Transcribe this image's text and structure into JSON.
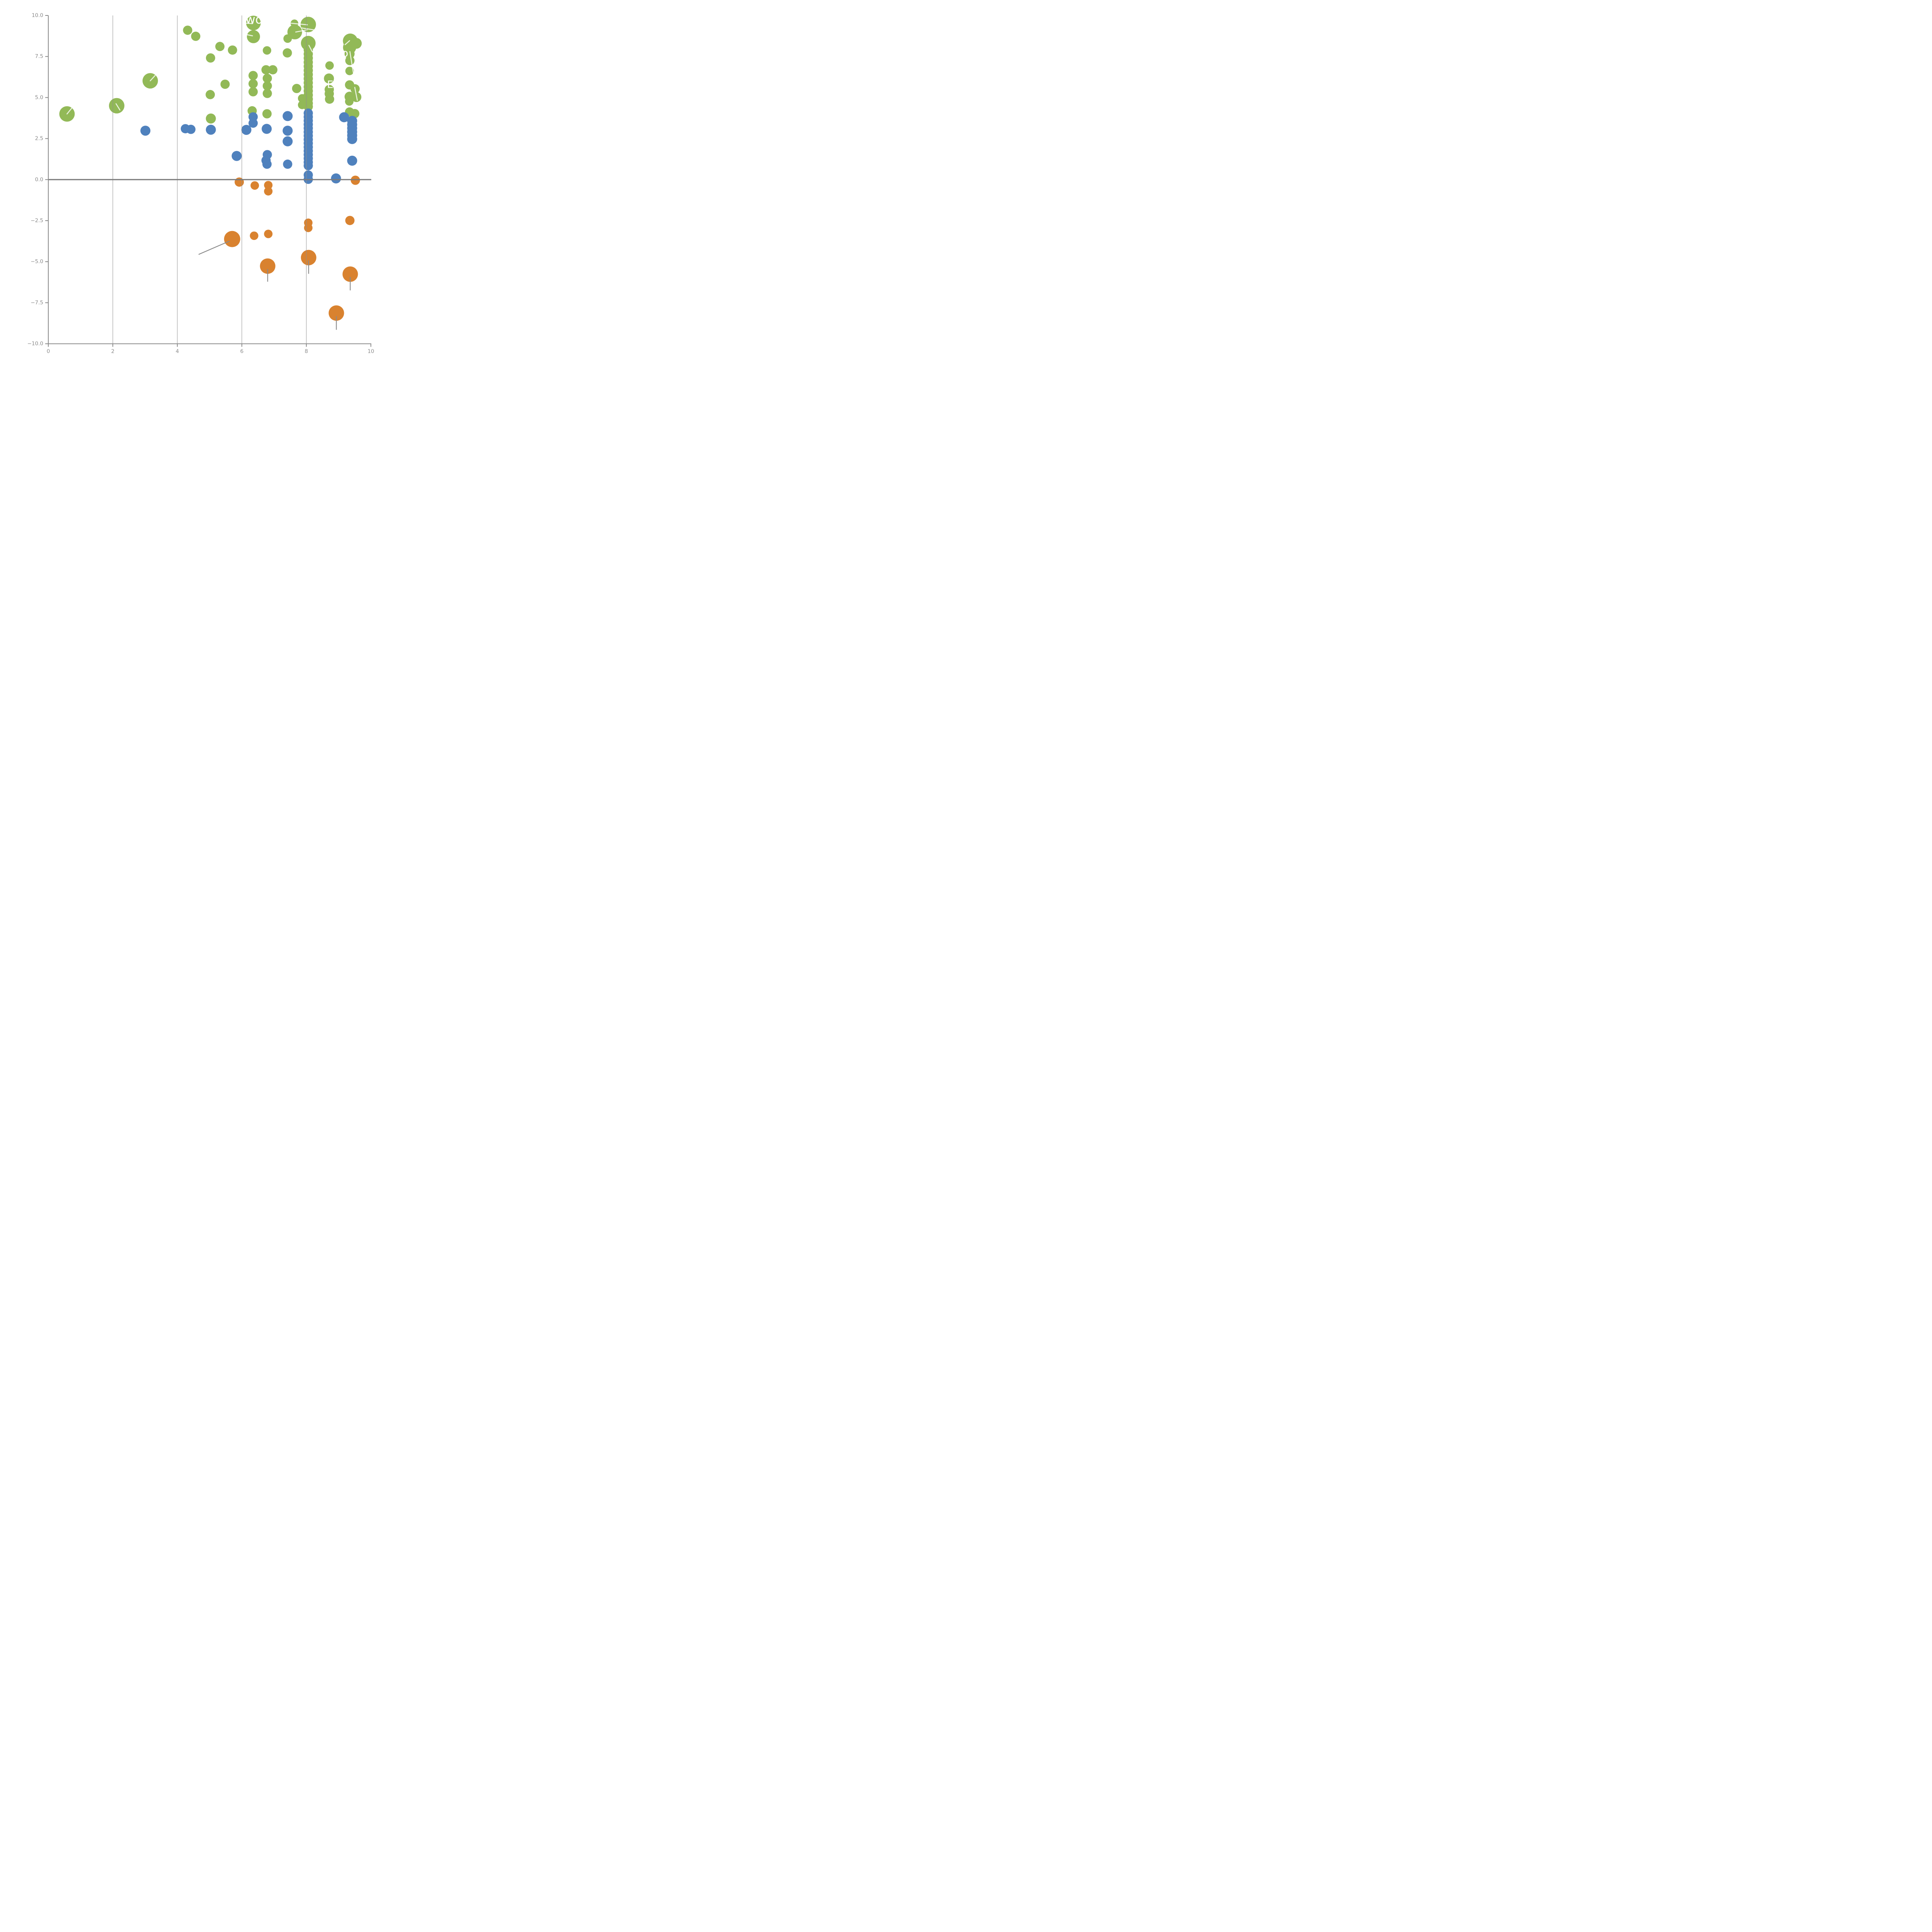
{
  "chart_data": {
    "type": "scatter",
    "title": "",
    "xlabel": "",
    "ylabel": "",
    "xlim": [
      0,
      10
    ],
    "ylim": [
      -10,
      10
    ],
    "x_ticks": [
      0,
      2,
      4,
      6,
      8,
      10
    ],
    "x_tick_labels": [
      "0",
      "2",
      "4",
      "6",
      "8",
      "10"
    ],
    "y_ticks": [
      10.0,
      7.5,
      5.0,
      2.5,
      0.0,
      -2.5,
      -5.0,
      -7.5,
      -10.0
    ],
    "y_tick_labels": [
      "10.0",
      "7.5",
      "5.0",
      "2.5",
      "0.0",
      "−2.5",
      "−5.0",
      "−7.5",
      "−10.0"
    ],
    "grid_x": [
      2,
      4,
      6,
      8
    ],
    "zero_line_y": 0,
    "legend": "none",
    "colors": {
      "green": "#92b957",
      "blue": "#4f81bd",
      "orange": "#d9822f",
      "axis": "#8a8a8a",
      "grid": "#8f8f8f",
      "zero_line": "#7b7b7b",
      "tick_label": "#8c8c8c",
      "gray_leader": "#8a8a8a",
      "white_annotation": "#ffffff"
    },
    "series": [
      {
        "name": "green-group",
        "color_key": "green",
        "points": [
          [
            0.58,
            4.0,
            20
          ],
          [
            2.12,
            4.5,
            20
          ],
          [
            3.16,
            6.02,
            20
          ],
          [
            4.32,
            9.1,
            12
          ],
          [
            4.57,
            8.73,
            12
          ],
          [
            5.32,
            8.11,
            12
          ],
          [
            5.71,
            7.89,
            12
          ],
          [
            5.03,
            7.41,
            12
          ],
          [
            5.48,
            5.81,
            12
          ],
          [
            5.02,
            5.18,
            12
          ],
          [
            5.04,
            3.72,
            13
          ],
          [
            6.36,
            9.54,
            19
          ],
          [
            6.36,
            8.71,
            17
          ],
          [
            6.35,
            6.34,
            12
          ],
          [
            6.35,
            5.84,
            12
          ],
          [
            6.35,
            5.35,
            12
          ],
          [
            6.75,
            6.69,
            12
          ],
          [
            6.96,
            6.69,
            12
          ],
          [
            6.78,
            7.87,
            11
          ],
          [
            6.79,
            6.17,
            12
          ],
          [
            6.79,
            5.71,
            12
          ],
          [
            6.79,
            5.25,
            12
          ],
          [
            6.32,
            4.19,
            12
          ],
          [
            6.78,
            4.01,
            12
          ],
          [
            7.41,
            7.72,
            12
          ],
          [
            7.63,
            9.52,
            10
          ],
          [
            7.64,
            8.99,
            19
          ],
          [
            7.42,
            8.59,
            11
          ],
          [
            7.7,
            5.55,
            12
          ],
          [
            8.06,
            9.45,
            20
          ],
          [
            8.06,
            8.31,
            19
          ],
          [
            8.06,
            7.9,
            12
          ],
          [
            8.06,
            7.65,
            12
          ],
          [
            8.06,
            7.4,
            12
          ],
          [
            8.06,
            7.15,
            12
          ],
          [
            8.06,
            6.9,
            12
          ],
          [
            8.06,
            6.65,
            12
          ],
          [
            8.06,
            6.4,
            12
          ],
          [
            8.06,
            6.15,
            12
          ],
          [
            8.06,
            5.9,
            12
          ],
          [
            8.06,
            5.65,
            12
          ],
          [
            8.06,
            5.4,
            12
          ],
          [
            8.06,
            5.15,
            12
          ],
          [
            8.06,
            4.9,
            12
          ],
          [
            8.06,
            4.65,
            12
          ],
          [
            8.06,
            4.45,
            12
          ],
          [
            7.87,
            4.95,
            11
          ],
          [
            7.87,
            4.55,
            11
          ],
          [
            8.7,
            6.16,
            13
          ],
          [
            8.71,
            5.49,
            12
          ],
          [
            8.71,
            5.23,
            12
          ],
          [
            8.72,
            4.9,
            12
          ],
          [
            8.72,
            6.95,
            11
          ],
          [
            9.36,
            8.45,
            19
          ],
          [
            9.55,
            8.3,
            14
          ],
          [
            9.34,
            8.05,
            17
          ],
          [
            9.34,
            7.66,
            13
          ],
          [
            9.35,
            7.25,
            12
          ],
          [
            9.34,
            6.62,
            11
          ],
          [
            9.34,
            5.77,
            12
          ],
          [
            9.51,
            5.53,
            12
          ],
          [
            9.34,
            5.05,
            13
          ],
          [
            9.55,
            5.03,
            13
          ],
          [
            9.33,
            4.76,
            11
          ],
          [
            9.34,
            4.12,
            12
          ],
          [
            9.5,
            4.02,
            12
          ]
        ]
      },
      {
        "name": "blue-group",
        "color_key": "blue",
        "points": [
          [
            3.01,
            2.98,
            13
          ],
          [
            4.25,
            3.1,
            12
          ],
          [
            4.42,
            3.06,
            12
          ],
          [
            5.04,
            3.04,
            13
          ],
          [
            6.14,
            3.03,
            13
          ],
          [
            6.35,
            3.82,
            12
          ],
          [
            6.35,
            3.44,
            12
          ],
          [
            6.77,
            3.09,
            13
          ],
          [
            7.42,
            3.87,
            13
          ],
          [
            7.42,
            2.98,
            13
          ],
          [
            7.42,
            2.33,
            13
          ],
          [
            7.42,
            0.94,
            12
          ],
          [
            5.84,
            1.44,
            13
          ],
          [
            6.79,
            1.52,
            12
          ],
          [
            6.75,
            1.17,
            12
          ],
          [
            6.78,
            0.94,
            12
          ],
          [
            8.06,
            4.05,
            12
          ],
          [
            8.06,
            3.82,
            12
          ],
          [
            8.06,
            3.59,
            12
          ],
          [
            8.06,
            3.36,
            12
          ],
          [
            8.06,
            3.13,
            12
          ],
          [
            8.06,
            2.9,
            12
          ],
          [
            8.06,
            2.67,
            12
          ],
          [
            8.06,
            2.44,
            12
          ],
          [
            8.06,
            2.21,
            12
          ],
          [
            8.06,
            1.98,
            12
          ],
          [
            8.06,
            1.75,
            12
          ],
          [
            8.06,
            1.52,
            12
          ],
          [
            8.06,
            1.29,
            12
          ],
          [
            8.06,
            1.06,
            12
          ],
          [
            8.06,
            0.85,
            12
          ],
          [
            8.06,
            0.28,
            12
          ],
          [
            8.06,
            0.02,
            12
          ],
          [
            9.17,
            3.8,
            13
          ],
          [
            9.42,
            3.58,
            13
          ],
          [
            9.42,
            3.35,
            13
          ],
          [
            9.42,
            3.13,
            13
          ],
          [
            9.42,
            2.91,
            13
          ],
          [
            9.42,
            2.69,
            13
          ],
          [
            9.42,
            2.47,
            13
          ],
          [
            9.42,
            1.15,
            13
          ],
          [
            8.92,
            0.07,
            13
          ]
        ]
      },
      {
        "name": "orange-group",
        "color_key": "orange",
        "points": [
          [
            5.92,
            -0.15,
            12
          ],
          [
            6.4,
            -0.36,
            11
          ],
          [
            6.82,
            -0.34,
            11
          ],
          [
            6.82,
            -0.71,
            11
          ],
          [
            9.52,
            -0.04,
            12
          ],
          [
            5.7,
            -3.62,
            21
          ],
          [
            6.38,
            -3.42,
            11
          ],
          [
            6.82,
            -3.31,
            11
          ],
          [
            8.06,
            -2.63,
            11
          ],
          [
            8.06,
            -2.94,
            11
          ],
          [
            9.35,
            -2.49,
            12
          ],
          [
            6.8,
            -5.27,
            20
          ],
          [
            8.07,
            -4.75,
            20
          ],
          [
            9.36,
            -5.76,
            20
          ],
          [
            8.93,
            -8.13,
            20
          ]
        ]
      }
    ],
    "white_labels": [
      {
        "text": "wo",
        "x": 6.38,
        "y": 9.74,
        "font_px": 31
      },
      {
        "text": "o",
        "x": 9.2,
        "y": 7.69,
        "font_px": 27
      },
      {
        "text": "E",
        "x": 8.74,
        "y": 5.77,
        "font_px": 26
      }
    ],
    "white_leader_lines": [
      [
        0.58,
        4.0,
        0.73,
        4.36
      ],
      [
        2.1,
        4.62,
        2.22,
        4.24
      ],
      [
        3.16,
        6.02,
        3.31,
        6.34
      ],
      [
        6.13,
        9.53,
        6.33,
        9.5
      ],
      [
        6.13,
        8.84,
        6.33,
        8.76
      ],
      [
        7.52,
        9.53,
        8.03,
        9.43
      ],
      [
        7.67,
        8.99,
        8.02,
        9.12
      ],
      [
        7.85,
        9.24,
        8.3,
        9.1
      ],
      [
        8.08,
        8.18,
        8.18,
        7.8
      ],
      [
        9.2,
        8.22,
        9.34,
        8.46
      ],
      [
        9.35,
        7.8,
        9.46,
        6.47
      ],
      [
        9.5,
        5.62,
        9.58,
        4.83
      ]
    ],
    "gray_leader_lines": [
      [
        5.62,
        -3.74,
        4.66,
        -4.56
      ],
      [
        6.8,
        -5.45,
        6.8,
        -6.22
      ],
      [
        8.07,
        -4.92,
        8.07,
        -5.74
      ],
      [
        9.36,
        -5.94,
        9.36,
        -6.75
      ],
      [
        8.93,
        -8.32,
        8.93,
        -9.15
      ]
    ]
  }
}
